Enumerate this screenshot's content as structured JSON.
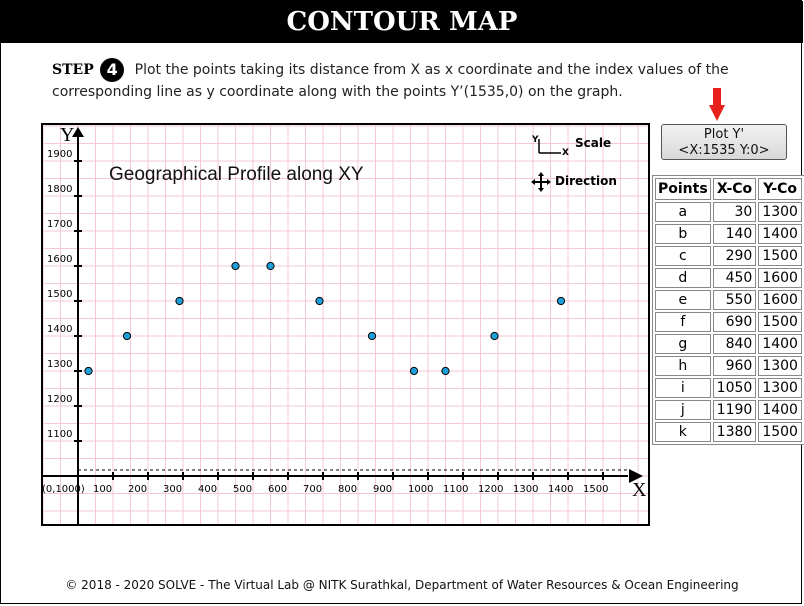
{
  "header": {
    "title": "CONTOUR MAP"
  },
  "step": {
    "label": "STEP",
    "number": "4",
    "instruction": "Plot the points taking its distance from X as x coordinate and the index values of the corresponding line as y coordinate along with the points Y’(1535,0) on the graph."
  },
  "plot_button": {
    "line1": "Plot Y'",
    "line2": "<X:1535 Y:0>"
  },
  "legend": {
    "scale_label": "Scale",
    "direction_label": "Direction",
    "scale_y": "Y",
    "scale_x": "X"
  },
  "table": {
    "headers": [
      "Points",
      "X-Co",
      "Y-Co"
    ],
    "rows": [
      [
        "a",
        "30",
        "1300"
      ],
      [
        "b",
        "140",
        "1400"
      ],
      [
        "c",
        "290",
        "1500"
      ],
      [
        "d",
        "450",
        "1600"
      ],
      [
        "e",
        "550",
        "1600"
      ],
      [
        "f",
        "690",
        "1500"
      ],
      [
        "g",
        "840",
        "1400"
      ],
      [
        "h",
        "960",
        "1300"
      ],
      [
        "i",
        "1050",
        "1300"
      ],
      [
        "j",
        "1190",
        "1400"
      ],
      [
        "k",
        "1380",
        "1500"
      ]
    ]
  },
  "footer": {
    "text": "© 2018 - 2020 SOLVE - The Virtual Lab @ NITK Surathkal, Department of Water Resources & Ocean Engineering"
  },
  "colors": {
    "grid": "#f4c8d8",
    "point_fill": "#1e9fd8",
    "arrow": "#e8221b"
  },
  "chart_data": {
    "type": "scatter",
    "title": "Geographical Profile along XY",
    "xlabel": "X",
    "ylabel": "Y",
    "origin_label": "(0,1000)",
    "xlim": [
      0,
      1600
    ],
    "ylim": [
      1000,
      1900
    ],
    "x_ticks": [
      100,
      200,
      300,
      400,
      500,
      600,
      700,
      800,
      900,
      1000,
      1100,
      1200,
      1300,
      1400,
      1500
    ],
    "y_ticks": [
      1100,
      1200,
      1300,
      1400,
      1500,
      1600,
      1700,
      1800,
      1900
    ],
    "grid": true,
    "points": [
      {
        "x": 30,
        "y": 1300
      },
      {
        "x": 140,
        "y": 1400
      },
      {
        "x": 290,
        "y": 1500
      },
      {
        "x": 450,
        "y": 1600
      },
      {
        "x": 550,
        "y": 1600
      },
      {
        "x": 690,
        "y": 1500
      },
      {
        "x": 840,
        "y": 1400
      },
      {
        "x": 960,
        "y": 1300
      },
      {
        "x": 1050,
        "y": 1300
      },
      {
        "x": 1190,
        "y": 1400
      },
      {
        "x": 1380,
        "y": 1500
      }
    ]
  }
}
